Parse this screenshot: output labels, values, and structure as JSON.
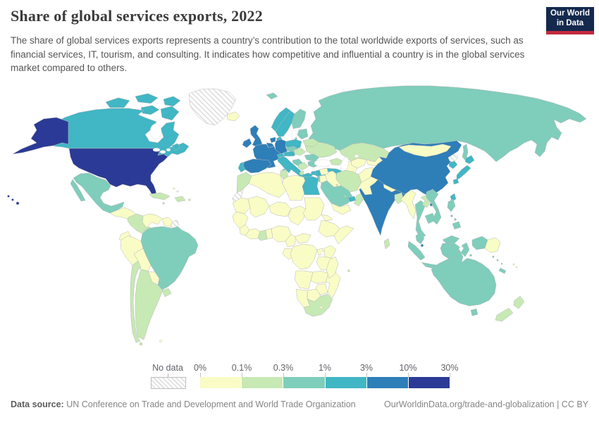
{
  "header": {
    "title": "Share of global services exports, 2022",
    "subtitle": "The share of global services exports represents a country’s contribution to the total worldwide exports of services, such as financial services, IT, tourism, and consulting. It indicates how competitive and influential a country is in the global services market compared to others.",
    "logo_line1": "Our World",
    "logo_line2": "in Data",
    "logo_bg": "#14294d",
    "logo_accent": "#c32a3d"
  },
  "legend": {
    "no_data_label": "No data",
    "ticks": [
      "0%",
      "0.1%",
      "0.3%",
      "1%",
      "3%",
      "10%",
      "30%"
    ],
    "colors": [
      "#f9fcc5",
      "#c7e9b4",
      "#7fcdbb",
      "#41b6c4",
      "#2e7eb8",
      "#2b3a96"
    ],
    "bin_labels": [
      "0%–0.1%",
      "0.1%–0.3%",
      "0.3%–1%",
      "1%–3%",
      "3%–10%",
      "10%–30%"
    ]
  },
  "footer": {
    "source_label": "Data source:",
    "source_text": " UN Conference on Trade and Development and World Trade Organization",
    "right_text": "OurWorldinData.org/trade-and-globalization | CC BY"
  },
  "chart_data": {
    "type": "choropleth",
    "title": "Share of global services exports, 2022",
    "unit": "% of world services exports",
    "scale_ticks": [
      "0%",
      "0.1%",
      "0.3%",
      "1%",
      "3%",
      "10%",
      "30%"
    ],
    "legend_position": "bottom",
    "regions": [
      {
        "id": "usa",
        "name": "United States",
        "bin": 5
      },
      {
        "id": "canada",
        "name": "Canada",
        "bin": 3
      },
      {
        "id": "greenland",
        "name": "Greenland",
        "bin": "nodata"
      },
      {
        "id": "mexico",
        "name": "Mexico",
        "bin": 2
      },
      {
        "id": "central-america",
        "name": "Guatemala / Honduras / Nicaragua",
        "bin": 0
      },
      {
        "id": "costa-rica-panama",
        "name": "Costa Rica / Panama",
        "bin": 1
      },
      {
        "id": "cuba",
        "name": "Cuba",
        "bin": 1
      },
      {
        "id": "hispaniola",
        "name": "Dominican Republic / Haiti",
        "bin": 1
      },
      {
        "id": "jamaica",
        "name": "Jamaica",
        "bin": 1
      },
      {
        "id": "puerto-rico",
        "name": "Puerto Rico",
        "bin": 1
      },
      {
        "id": "bahamas",
        "name": "Bahamas",
        "bin": 0
      },
      {
        "id": "colombia",
        "name": "Colombia",
        "bin": 1
      },
      {
        "id": "venezuela",
        "name": "Venezuela",
        "bin": 0
      },
      {
        "id": "guyana-suriname",
        "name": "Guyana / Suriname",
        "bin": 0
      },
      {
        "id": "french-guiana",
        "name": "French Guiana",
        "bin": "nodata"
      },
      {
        "id": "brazil",
        "name": "Brazil",
        "bin": 2
      },
      {
        "id": "ecuador",
        "name": "Ecuador",
        "bin": 0
      },
      {
        "id": "peru",
        "name": "Peru",
        "bin": 0
      },
      {
        "id": "bolivia",
        "name": "Bolivia",
        "bin": 0
      },
      {
        "id": "paraguay",
        "name": "Paraguay",
        "bin": 0
      },
      {
        "id": "chile",
        "name": "Chile",
        "bin": 1
      },
      {
        "id": "argentina",
        "name": "Argentina",
        "bin": 1
      },
      {
        "id": "uruguay",
        "name": "Uruguay",
        "bin": 1
      },
      {
        "id": "falkland",
        "name": "Falkland Islands",
        "bin": 0
      },
      {
        "id": "tierra-del-fuego",
        "name": "Tierra del Fuego",
        "bin": 1
      },
      {
        "id": "iceland",
        "name": "Iceland",
        "bin": 0
      },
      {
        "id": "uk",
        "name": "United Kingdom",
        "bin": 4
      },
      {
        "id": "ireland",
        "name": "Ireland",
        "bin": 4
      },
      {
        "id": "norway",
        "name": "Norway",
        "bin": 3
      },
      {
        "id": "svalbard",
        "name": "Svalbard",
        "bin": 2
      },
      {
        "id": "sweden",
        "name": "Sweden",
        "bin": 3
      },
      {
        "id": "finland",
        "name": "Finland",
        "bin": 2
      },
      {
        "id": "denmark",
        "name": "Denmark",
        "bin": 3
      },
      {
        "id": "baltic-states",
        "name": "Baltic states",
        "bin": 2
      },
      {
        "id": "belarus",
        "name": "Belarus",
        "bin": 1
      },
      {
        "id": "ukraine",
        "name": "Ukraine",
        "bin": 1
      },
      {
        "id": "poland",
        "name": "Poland",
        "bin": 3
      },
      {
        "id": "germany",
        "name": "Germany",
        "bin": 4
      },
      {
        "id": "netherlands",
        "name": "Netherlands",
        "bin": 4
      },
      {
        "id": "belgium",
        "name": "Belgium",
        "bin": 4
      },
      {
        "id": "france",
        "name": "France",
        "bin": 4
      },
      {
        "id": "switzerland",
        "name": "Switzerland",
        "bin": 3
      },
      {
        "id": "czechia",
        "name": "Czechia",
        "bin": 2
      },
      {
        "id": "austria",
        "name": "Austria",
        "bin": 3
      },
      {
        "id": "hungary-slovakia",
        "name": "Hungary / Slovakia",
        "bin": 1
      },
      {
        "id": "italy",
        "name": "Italy",
        "bin": 3
      },
      {
        "id": "spain",
        "name": "Spain",
        "bin": 4
      },
      {
        "id": "portugal",
        "name": "Portugal",
        "bin": 3
      },
      {
        "id": "croatia",
        "name": "Croatia / Slovenia",
        "bin": 2
      },
      {
        "id": "serbia",
        "name": "Serbia / Bosnia",
        "bin": 1
      },
      {
        "id": "albania",
        "name": "Albania / N. Macedonia",
        "bin": 1
      },
      {
        "id": "greece",
        "name": "Greece",
        "bin": 3
      },
      {
        "id": "romania",
        "name": "Romania",
        "bin": 2
      },
      {
        "id": "bulgaria",
        "name": "Bulgaria",
        "bin": 2
      },
      {
        "id": "turkey",
        "name": "Turkey",
        "bin": 3
      },
      {
        "id": "cyprus",
        "name": "Cyprus",
        "bin": 1
      },
      {
        "id": "russia",
        "name": "Russia",
        "bin": 2
      },
      {
        "id": "kazakhstan",
        "name": "Kazakhstan",
        "bin": 1
      },
      {
        "id": "uzbekistan",
        "name": "Uzbekistan",
        "bin": 0
      },
      {
        "id": "turkmenistan",
        "name": "Turkmenistan",
        "bin": 0
      },
      {
        "id": "kyrgyzstan-tajikistan",
        "name": "Kyrgyzstan / Tajikistan",
        "bin": 0
      },
      {
        "id": "caucasus",
        "name": "Caucasus states",
        "bin": 1
      },
      {
        "id": "iran",
        "name": "Iran",
        "bin": 1
      },
      {
        "id": "afghanistan",
        "name": "Afghanistan",
        "bin": 0
      },
      {
        "id": "pakistan",
        "name": "Pakistan",
        "bin": 0
      },
      {
        "id": "iraq",
        "name": "Iraq",
        "bin": 0
      },
      {
        "id": "syria",
        "name": "Syria",
        "bin": 0
      },
      {
        "id": "israel",
        "name": "Israel",
        "bin": 2
      },
      {
        "id": "jordan",
        "name": "Jordan",
        "bin": 0
      },
      {
        "id": "saudi-arabia",
        "name": "Saudi Arabia",
        "bin": 2
      },
      {
        "id": "kuwait",
        "name": "Kuwait",
        "bin": 1
      },
      {
        "id": "qatar",
        "name": "Qatar",
        "bin": 1
      },
      {
        "id": "uae",
        "name": "United Arab Emirates",
        "bin": 3
      },
      {
        "id": "oman",
        "name": "Oman",
        "bin": 1
      },
      {
        "id": "yemen",
        "name": "Yemen",
        "bin": 0
      },
      {
        "id": "morocco",
        "name": "Morocco",
        "bin": 1
      },
      {
        "id": "western-sahara",
        "name": "Western Sahara",
        "bin": "nodata"
      },
      {
        "id": "algeria",
        "name": "Algeria",
        "bin": 0
      },
      {
        "id": "tunisia",
        "name": "Tunisia",
        "bin": 1
      },
      {
        "id": "libya",
        "name": "Libya",
        "bin": 0
      },
      {
        "id": "egypt",
        "name": "Egypt",
        "bin": 3
      },
      {
        "id": "mauritania",
        "name": "Mauritania",
        "bin": 0
      },
      {
        "id": "mali",
        "name": "Mali",
        "bin": 0
      },
      {
        "id": "niger",
        "name": "Niger",
        "bin": 0
      },
      {
        "id": "chad",
        "name": "Chad",
        "bin": 0
      },
      {
        "id": "sudan",
        "name": "Sudan",
        "bin": 0
      },
      {
        "id": "eritrea",
        "name": "Eritrea",
        "bin": 0
      },
      {
        "id": "ethiopia",
        "name": "Ethiopia",
        "bin": 0
      },
      {
        "id": "somalia",
        "name": "Somalia",
        "bin": 0
      },
      {
        "id": "west-africa",
        "name": "Senegal / Guinea",
        "bin": 0
      },
      {
        "id": "sierra-leone-liberia",
        "name": "Sierra Leone / Liberia",
        "bin": 0
      },
      {
        "id": "ivory-coast",
        "name": "Côte d’Ivoire",
        "bin": 0
      },
      {
        "id": "ghana",
        "name": "Ghana",
        "bin": 1
      },
      {
        "id": "togo-benin",
        "name": "Togo / Benin",
        "bin": 0
      },
      {
        "id": "nigeria",
        "name": "Nigeria",
        "bin": 0
      },
      {
        "id": "cameroon",
        "name": "Cameroon",
        "bin": 0
      },
      {
        "id": "central-african-republic",
        "name": "Central African Republic",
        "bin": 0
      },
      {
        "id": "gabon-congo",
        "name": "Gabon / Congo",
        "bin": 0
      },
      {
        "id": "drc",
        "name": "Democratic Republic of Congo",
        "bin": 0
      },
      {
        "id": "uganda",
        "name": "Uganda",
        "bin": 0
      },
      {
        "id": "kenya",
        "name": "Kenya",
        "bin": 0
      },
      {
        "id": "tanzania",
        "name": "Tanzania",
        "bin": 0
      },
      {
        "id": "angola",
        "name": "Angola",
        "bin": 0
      },
      {
        "id": "zambia",
        "name": "Zambia",
        "bin": 0
      },
      {
        "id": "mozambique",
        "name": "Mozambique / Malawi",
        "bin": 0
      },
      {
        "id": "zimbabwe",
        "name": "Zimbabwe",
        "bin": 0
      },
      {
        "id": "botswana",
        "name": "Botswana",
        "bin": 0
      },
      {
        "id": "namibia",
        "name": "Namibia",
        "bin": 0
      },
      {
        "id": "south-africa",
        "name": "South Africa",
        "bin": 1
      },
      {
        "id": "lesotho",
        "name": "Lesotho",
        "bin": 0
      },
      {
        "id": "madagascar",
        "name": "Madagascar",
        "bin": 0
      },
      {
        "id": "mauritius",
        "name": "Mauritius",
        "bin": 1
      },
      {
        "id": "india",
        "name": "India",
        "bin": 4
      },
      {
        "id": "nepal",
        "name": "Nepal",
        "bin": 0
      },
      {
        "id": "bhutan",
        "name": "Bhutan",
        "bin": 1
      },
      {
        "id": "bangladesh",
        "name": "Bangladesh",
        "bin": 1
      },
      {
        "id": "sri-lanka",
        "name": "Sri Lanka",
        "bin": 1
      },
      {
        "id": "myanmar",
        "name": "Myanmar",
        "bin": 0
      },
      {
        "id": "thailand",
        "name": "Thailand",
        "bin": 2
      },
      {
        "id": "laos",
        "name": "Laos",
        "bin": 1
      },
      {
        "id": "vietnam",
        "name": "Vietnam",
        "bin": 2
      },
      {
        "id": "cambodia",
        "name": "Cambodia",
        "bin": 2
      },
      {
        "id": "malaysia",
        "name": "Malaysia",
        "bin": 2
      },
      {
        "id": "singapore",
        "name": "Singapore",
        "bin": 4
      },
      {
        "id": "indonesia",
        "name": "Indonesia",
        "bin": 2
      },
      {
        "id": "timor",
        "name": "Lesser Sunda Islands",
        "bin": 2
      },
      {
        "id": "philippines",
        "name": "Philippines",
        "bin": 2
      },
      {
        "id": "taiwan",
        "name": "Taiwan",
        "bin": 3
      },
      {
        "id": "china",
        "name": "China",
        "bin": 4
      },
      {
        "id": "mongolia",
        "name": "Mongolia",
        "bin": 0
      },
      {
        "id": "north-korea",
        "name": "North Korea",
        "bin": "nodata"
      },
      {
        "id": "south-korea",
        "name": "South Korea",
        "bin": 3
      },
      {
        "id": "japan",
        "name": "Japan",
        "bin": 3
      },
      {
        "id": "papua-new-guinea",
        "name": "Papua New Guinea",
        "bin": 0
      },
      {
        "id": "solomon",
        "name": "Solomon Islands",
        "bin": 2
      },
      {
        "id": "new-caledonia",
        "name": "New Caledonia",
        "bin": 2
      },
      {
        "id": "fiji",
        "name": "Fiji",
        "bin": 0
      },
      {
        "id": "australia",
        "name": "Australia",
        "bin": 2
      },
      {
        "id": "new-zealand",
        "name": "New Zealand",
        "bin": 1
      }
    ]
  }
}
